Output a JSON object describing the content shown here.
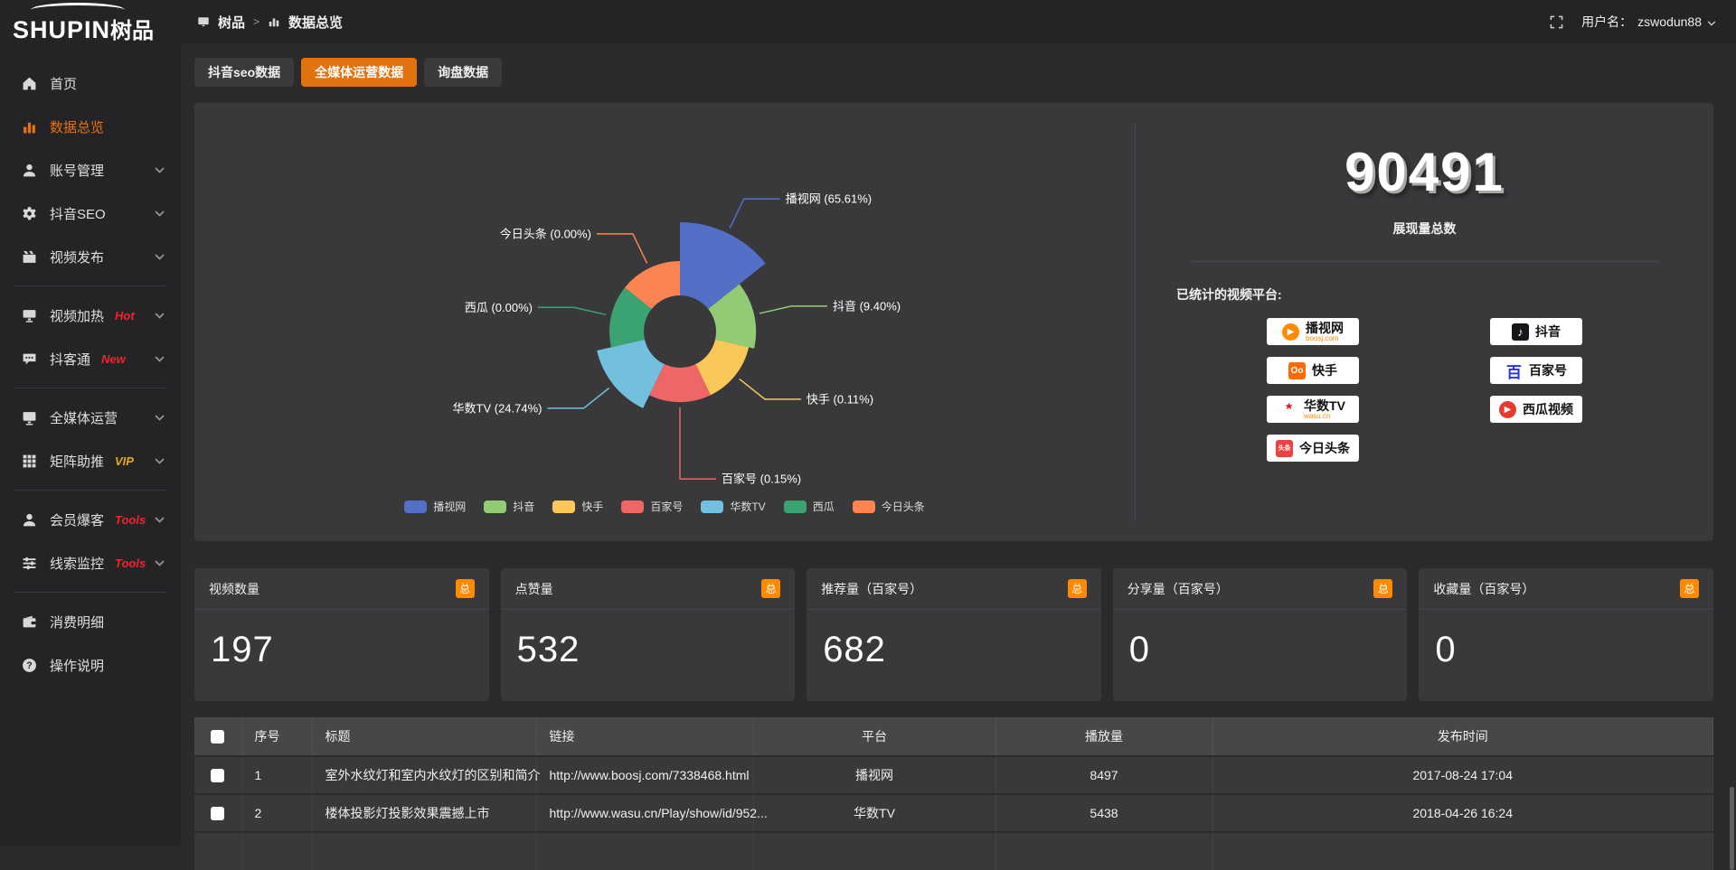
{
  "colors": {
    "accent": "#e8720e",
    "badge_orange": "#ff8a00",
    "hot_red": "#f5222d",
    "vip_yellow": "#e6a817",
    "panel_bg": "#39393c",
    "sidebar_bg": "#242427"
  },
  "app": {
    "logo_en": "SHUPIN",
    "logo_cn": "树品"
  },
  "topbar": {
    "breadcrumb_root": "树品",
    "breadcrumb_sep": ">",
    "breadcrumb_current": "数据总览",
    "user_label": "用户名：",
    "username": "zswodun88"
  },
  "sidebar": {
    "items": [
      {
        "label": "首页",
        "icon": "home-icon"
      },
      {
        "label": "数据总览",
        "icon": "bar-chart-icon",
        "active": true
      },
      {
        "label": "账号管理",
        "icon": "user-icon",
        "expandable": true
      },
      {
        "label": "抖音SEO",
        "icon": "gear-icon",
        "expandable": true
      },
      {
        "label": "视频发布",
        "icon": "video-publish-icon",
        "expandable": true
      },
      {
        "label": "视频加热",
        "icon": "video-heat-icon",
        "badge": "Hot",
        "badge_color": "#f5222d",
        "expandable": true
      },
      {
        "label": "抖客通",
        "icon": "chat-icon",
        "badge": "New",
        "badge_color": "#f5222d",
        "expandable": true
      },
      {
        "label": "全媒体运营",
        "icon": "media-monitor-icon",
        "expandable": true
      },
      {
        "label": "矩阵助推",
        "icon": "matrix-grid-icon",
        "badge": "VIP",
        "badge_color": "#e6a817",
        "expandable": true
      },
      {
        "label": "会员爆客",
        "icon": "member-icon",
        "badge": "Tools",
        "badge_color": "#f5222d",
        "expandable": true
      },
      {
        "label": "线索监控",
        "icon": "clue-filter-icon",
        "badge": "Tools",
        "badge_color": "#f5222d",
        "expandable": true
      },
      {
        "label": "消费明细",
        "icon": "wallet-icon"
      },
      {
        "label": "操作说明",
        "icon": "help-icon"
      }
    ]
  },
  "tabs": [
    {
      "label": "抖音seo数据",
      "active": false
    },
    {
      "label": "全媒体运营数据",
      "active": true
    },
    {
      "label": "询盘数据",
      "active": false
    }
  ],
  "chart_data": {
    "type": "pie",
    "variant": "nightingale-rose-donut",
    "legend_position": "bottom",
    "label_format": "{name} ({value}%)",
    "items": [
      {
        "name": "播视网",
        "value": 65.61,
        "color": "#5470c6"
      },
      {
        "name": "抖音",
        "value": 9.4,
        "color": "#91cc75"
      },
      {
        "name": "快手",
        "value": 0.11,
        "color": "#fac858"
      },
      {
        "name": "百家号",
        "value": 0.15,
        "color": "#ee6666"
      },
      {
        "name": "华数TV",
        "value": 24.74,
        "color": "#73c0de"
      },
      {
        "name": "西瓜",
        "value": 0.0,
        "color": "#3ba272"
      },
      {
        "name": "今日头条",
        "value": 0.0,
        "color": "#fc8452"
      }
    ]
  },
  "overview": {
    "total_value": "90491",
    "total_label": "展现量总数",
    "platforms_title": "已统计的视频平台:",
    "platforms_left": [
      {
        "name": "播视网",
        "sub": "boosj.com",
        "icon_text": "▶",
        "icon_color": "#ff8a00",
        "icon_shape": "round"
      },
      {
        "name": "快手",
        "icon_text": "Oo",
        "icon_color": "#ff6a00",
        "icon_shape": "square"
      },
      {
        "name": "华数TV",
        "sub": "wasu.cn",
        "icon_text": "*",
        "icon_color": "#e60012",
        "icon_shape": "plain"
      },
      {
        "name": "今日头条",
        "icon_text": "头条",
        "icon_color": "#f04142",
        "icon_shape": "square"
      }
    ],
    "platforms_right": [
      {
        "name": "抖音",
        "icon_text": "♪",
        "icon_color": "#16161a",
        "icon_shape": "square"
      },
      {
        "name": "百家号",
        "icon_text": "百",
        "icon_color": "#2932e1",
        "icon_shape": "plain"
      },
      {
        "name": "西瓜视频",
        "icon_text": "▶",
        "icon_color": "#e8392f",
        "icon_shape": "round"
      }
    ]
  },
  "stat_cards": [
    {
      "title": "视频数量",
      "badge": "总",
      "value": "197"
    },
    {
      "title": "点赞量",
      "badge": "总",
      "value": "532"
    },
    {
      "title": "推荐量（百家号）",
      "badge": "总",
      "value": "682"
    },
    {
      "title": "分享量（百家号）",
      "badge": "总",
      "value": "0"
    },
    {
      "title": "收藏量（百家号）",
      "badge": "总",
      "value": "0"
    }
  ],
  "table": {
    "columns": [
      "序号",
      "标题",
      "链接",
      "平台",
      "播放量",
      "发布时间"
    ],
    "rows": [
      {
        "no": "1",
        "title": "室外水纹灯和室内水纹灯的区别和简介",
        "link": "http://www.boosj.com/7338468.html",
        "platform": "播视网",
        "plays": "8497",
        "time": "2017-08-24 17:04"
      },
      {
        "no": "2",
        "title": "楼体投影灯投影效果震撼上市",
        "link": "http://www.wasu.cn/Play/show/id/952...",
        "platform": "华数TV",
        "plays": "5438",
        "time": "2018-04-26 16:24"
      }
    ]
  }
}
